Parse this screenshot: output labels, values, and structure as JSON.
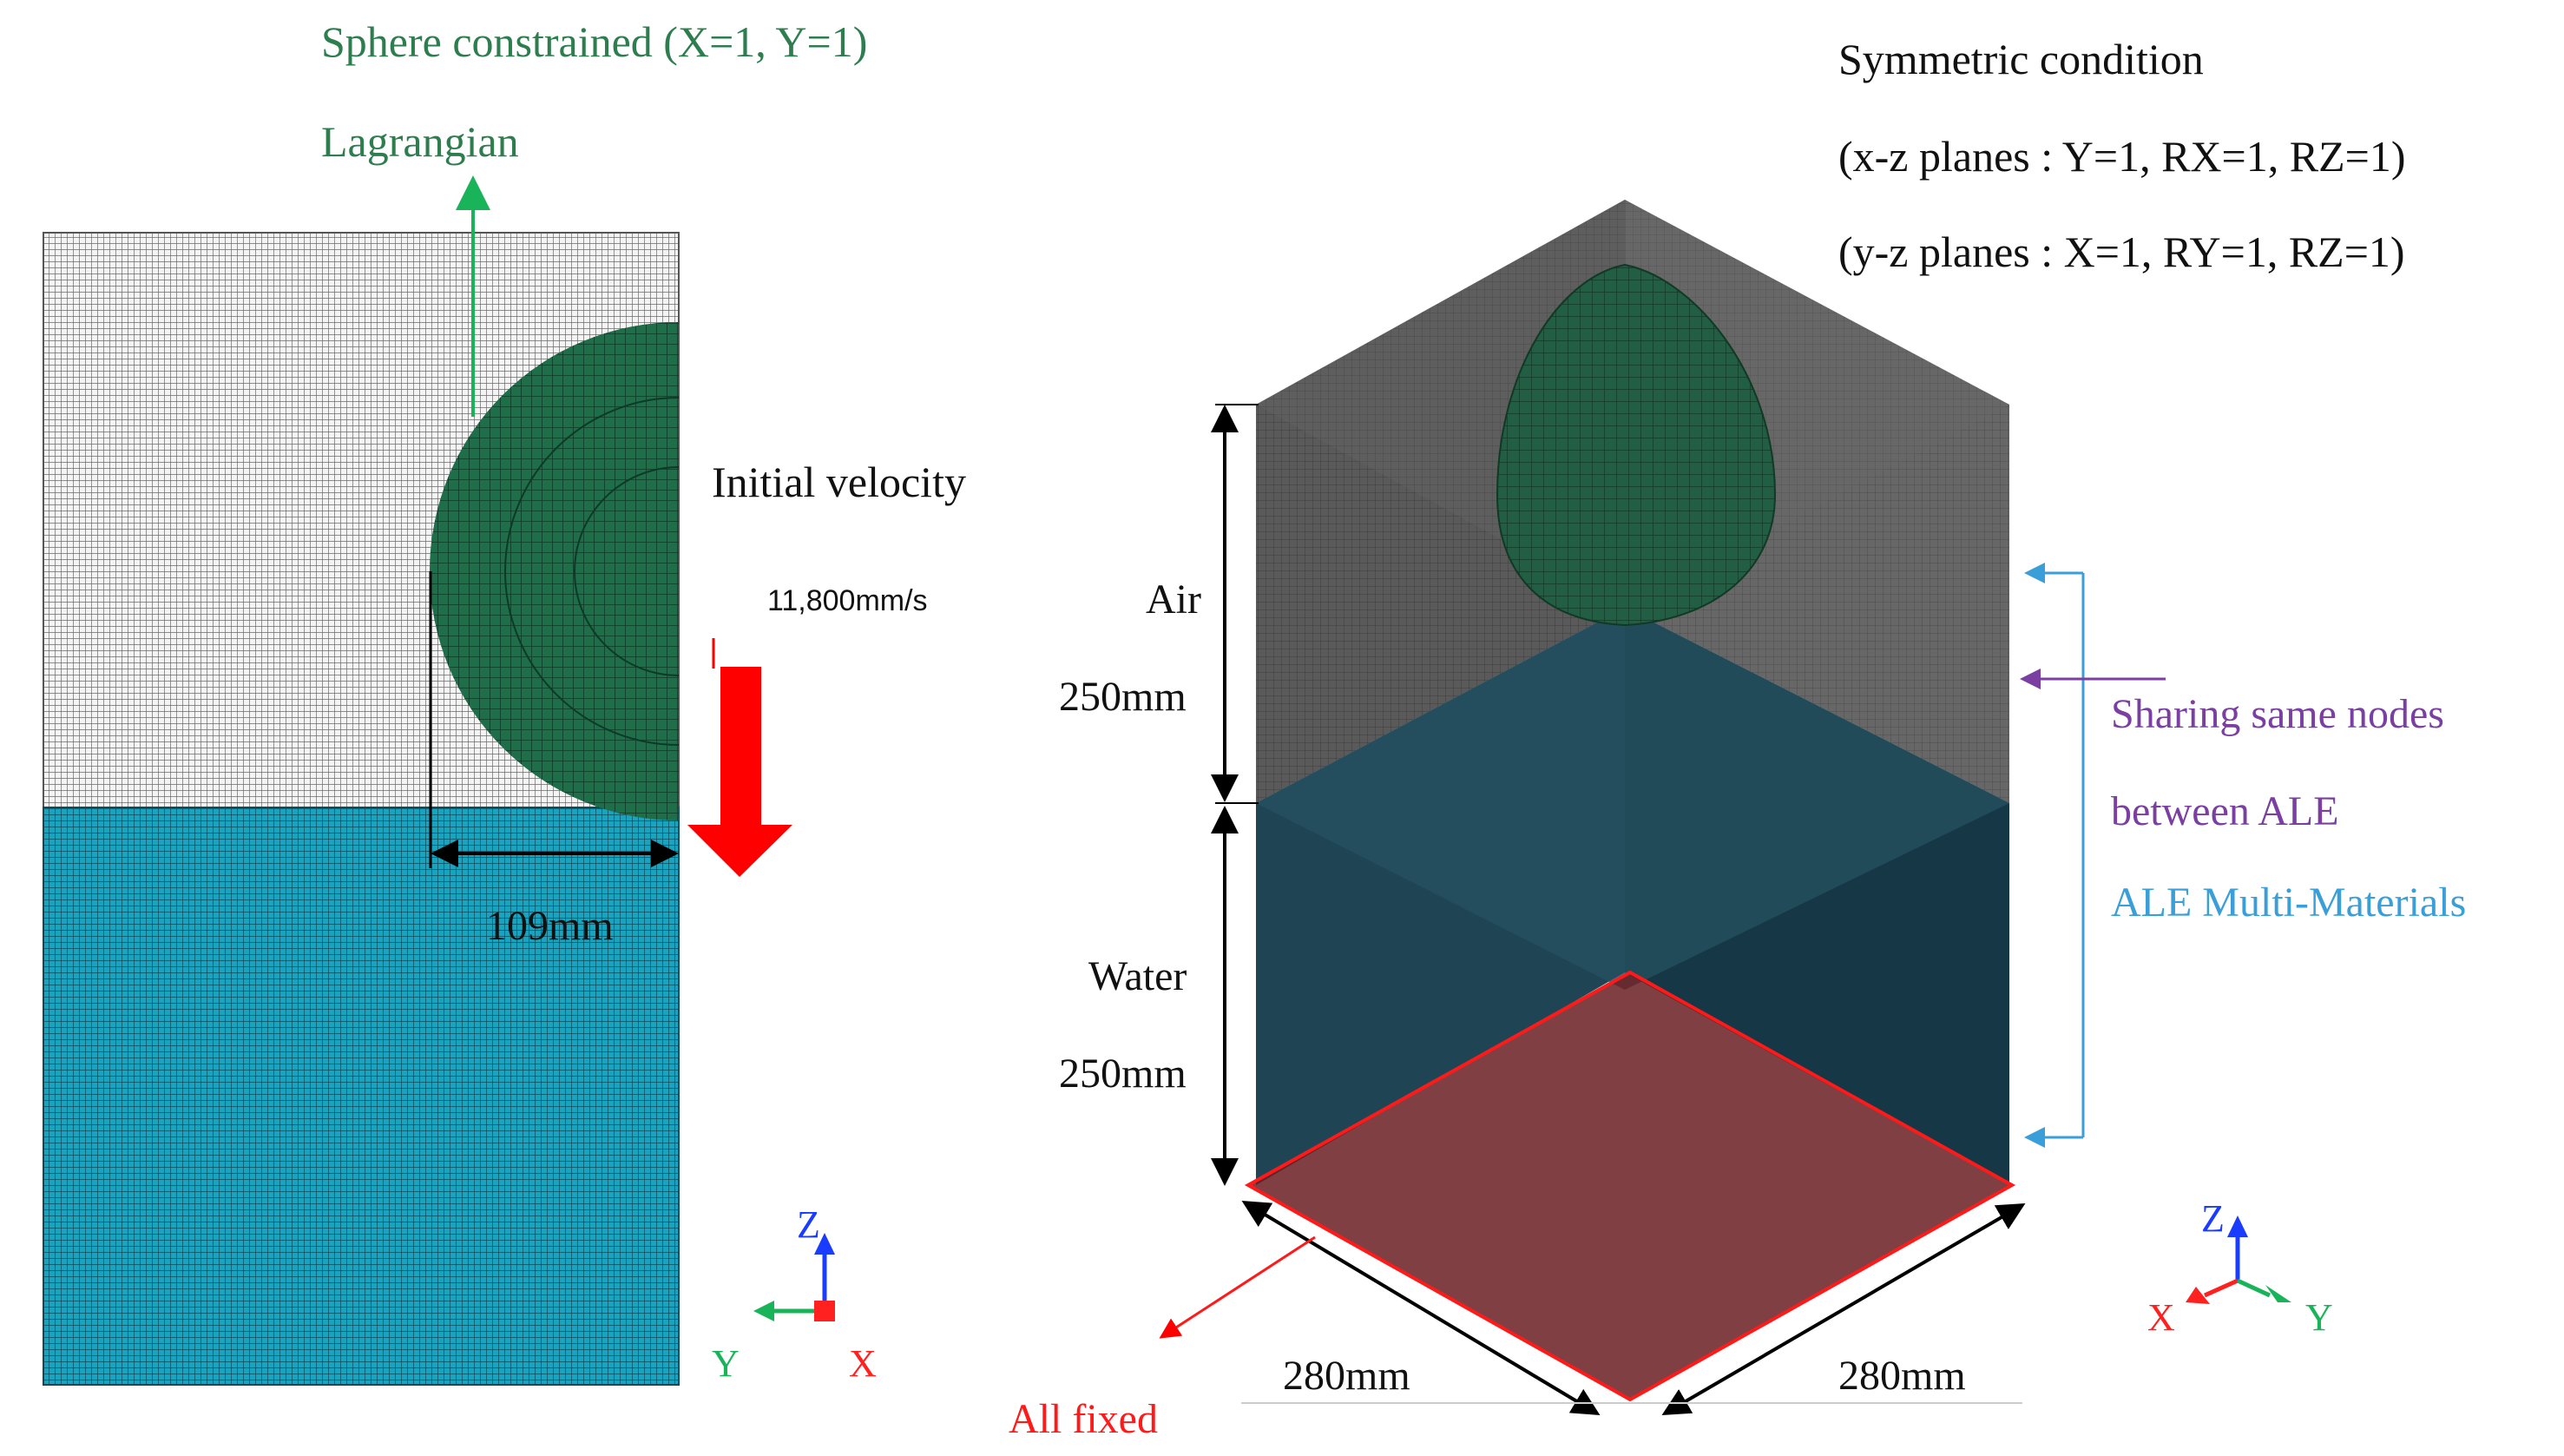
{
  "left_panel": {
    "title": "Sphere constrained (X=1, Y=1)",
    "lagrangian_label": "Lagrangian",
    "initial_velocity_label": "Initial velocity",
    "velocity_value": "11,800mm/s",
    "radius_label": "109mm",
    "axis": {
      "z": "Z",
      "y": "Y",
      "x": "X"
    }
  },
  "right_panel": {
    "symmetric_title": "Symmetric condition",
    "xz_planes": "(x-z planes : Y=1, RX=1, RZ=1)",
    "yz_planes": "(y-z planes : X=1, RY=1, RZ=1)",
    "air_label": "Air",
    "air_height": "250mm",
    "water_label": "Water",
    "water_height": "250mm",
    "sharing_line1": "Sharing same nodes",
    "sharing_line2": "between ALE",
    "ale_multi": "ALE Multi-Materials",
    "width_left": "280mm",
    "width_right": "280mm",
    "all_fixed": "All fixed",
    "axis": {
      "z": "Z",
      "x": "X",
      "y": "Y"
    }
  },
  "colors": {
    "green_text": "#2e7d4f",
    "purple_text": "#7a3fa0",
    "blue_text": "#3a9fd8",
    "red": "#ff0000",
    "water": "#1aa3bf",
    "sphere": "#1f6e4a",
    "mesh_dark": "#4a4a4a",
    "fixed_plane": "#7a1a1f"
  }
}
